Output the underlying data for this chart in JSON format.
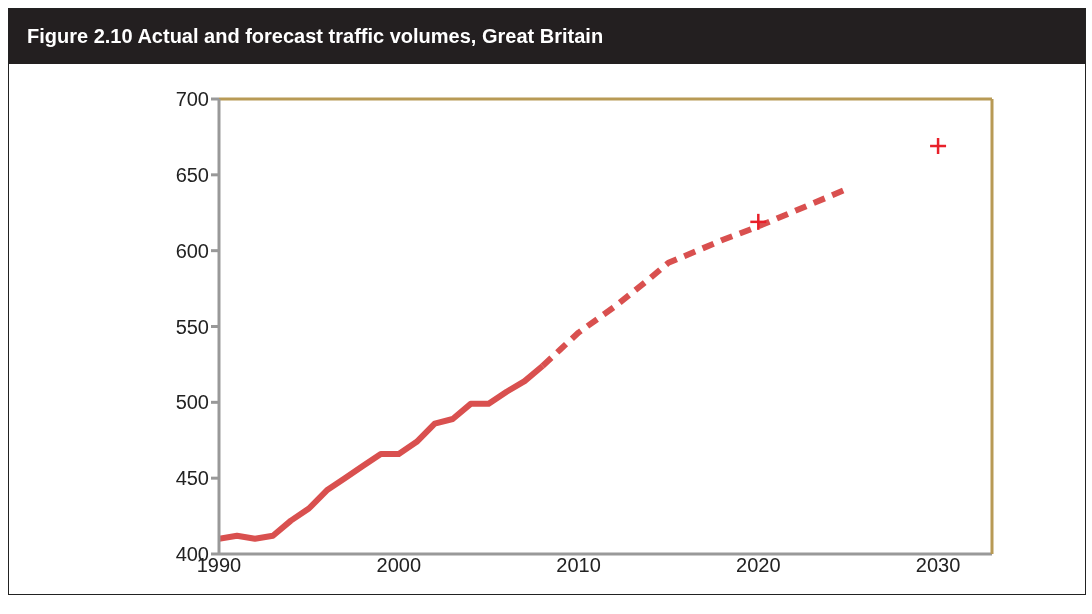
{
  "chart_data": {
    "type": "line",
    "title": "Figure 2.10  Actual and forecast traffic volumes, Great Britain",
    "xlim": [
      1990,
      2033
    ],
    "xticks": [
      1990,
      2000,
      2010,
      2020,
      2030
    ],
    "ylim": [
      400,
      700
    ],
    "yticks": [
      400,
      450,
      500,
      550,
      600,
      650,
      700
    ],
    "legend": false,
    "series": [
      {
        "color": "#d9504f",
        "line_style": "solid",
        "marker": "none",
        "x": [
          1990,
          1991,
          1992,
          1993,
          1994,
          1995,
          1996,
          1997,
          1998,
          1999,
          2000,
          2001,
          2002,
          2003,
          2004,
          2005,
          2006,
          2007,
          2008
        ],
        "values": [
          410,
          412,
          410,
          412,
          422,
          430,
          442,
          450,
          458,
          466,
          466,
          474,
          486,
          489,
          499,
          499,
          507,
          514,
          524
        ]
      },
      {
        "color": "#d9504f",
        "line_style": "dashed",
        "marker": "none",
        "x": [
          2008,
          2009,
          2010,
          2012,
          2014,
          2015,
          2018,
          2020,
          2022,
          2025
        ],
        "values": [
          524,
          535,
          546,
          563,
          582,
          592,
          607,
          616,
          626,
          641
        ]
      },
      {
        "type": "scatter",
        "color": "#e8202a",
        "marker": "cross",
        "x": [
          2020,
          2030
        ],
        "values": [
          619,
          669
        ]
      }
    ]
  }
}
